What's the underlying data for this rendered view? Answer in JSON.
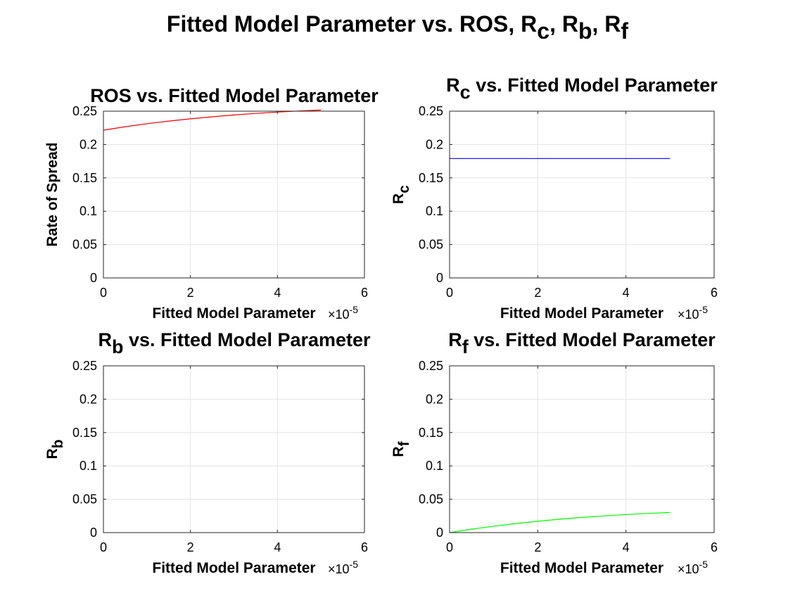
{
  "figure": {
    "title_main": "Fitted Model Parameter vs. ROS, R",
    "title_parts": [
      {
        "t": "Fitted Model Parameter vs. ROS, R",
        "sub": false
      },
      {
        "t": "c",
        "sub": true
      },
      {
        "t": ", R",
        "sub": false
      },
      {
        "t": "b",
        "sub": true
      },
      {
        "t": ", R",
        "sub": false
      },
      {
        "t": "f",
        "sub": true
      }
    ]
  },
  "chart_data": [
    {
      "type": "line",
      "title_parts": [
        {
          "t": "ROS vs. Fitted Model Parameter",
          "sub": false
        }
      ],
      "xlabel": "Fitted Model Parameter",
      "x_exponent": "×10",
      "x_exponent_power": "-5",
      "ylabel_parts": [
        {
          "t": "Rate of Spread",
          "sub": false
        }
      ],
      "xlim": [
        0,
        6
      ],
      "ylim": [
        0,
        0.25
      ],
      "xticks": [
        "0",
        "2",
        "4",
        "6"
      ],
      "yticks": [
        "0",
        "0.05",
        "0.1",
        "0.15",
        "0.2",
        "0.25"
      ],
      "grid": true,
      "series": [
        {
          "color": "#ff0000",
          "x": [
            0,
            0.5,
            1,
            1.5,
            2,
            2.5,
            3,
            3.5,
            4,
            4.5,
            5
          ],
          "y": [
            0.2215,
            0.2267,
            0.2312,
            0.2351,
            0.2385,
            0.2416,
            0.2443,
            0.2466,
            0.2486,
            0.2503,
            0.2517
          ]
        }
      ]
    },
    {
      "type": "line",
      "title_parts": [
        {
          "t": "R",
          "sub": false
        },
        {
          "t": "c",
          "sub": true
        },
        {
          "t": " vs. Fitted Model Parameter",
          "sub": false
        }
      ],
      "xlabel": "Fitted Model Parameter",
      "x_exponent": "×10",
      "x_exponent_power": "-5",
      "ylabel_parts": [
        {
          "t": "R",
          "sub": false
        },
        {
          "t": "c",
          "sub": true
        }
      ],
      "xlim": [
        0,
        6
      ],
      "ylim": [
        0,
        0.25
      ],
      "xticks": [
        "0",
        "2",
        "4",
        "6"
      ],
      "yticks": [
        "0",
        "0.05",
        "0.1",
        "0.15",
        "0.2",
        "0.25"
      ],
      "grid": true,
      "series": [
        {
          "color": "#0000ff",
          "x": [
            0,
            5
          ],
          "y": [
            0.179,
            0.179
          ]
        }
      ]
    },
    {
      "type": "line",
      "title_parts": [
        {
          "t": "R",
          "sub": false
        },
        {
          "t": "b",
          "sub": true
        },
        {
          "t": " vs. Fitted Model Parameter",
          "sub": false
        }
      ],
      "xlabel": "Fitted Model Parameter",
      "x_exponent": "×10",
      "x_exponent_power": "-5",
      "ylabel_parts": [
        {
          "t": "R",
          "sub": false
        },
        {
          "t": "b",
          "sub": true
        }
      ],
      "xlim": [
        0,
        6
      ],
      "ylim": [
        0,
        0.25
      ],
      "xticks": [
        "0",
        "2",
        "4",
        "6"
      ],
      "yticks": [
        "0",
        "0.05",
        "0.1",
        "0.15",
        "0.2",
        "0.25"
      ],
      "grid": true,
      "series": []
    },
    {
      "type": "line",
      "title_parts": [
        {
          "t": "R",
          "sub": false
        },
        {
          "t": "f",
          "sub": true
        },
        {
          "t": " vs. Fitted Model Parameter",
          "sub": false
        }
      ],
      "xlabel": "Fitted Model Parameter",
      "x_exponent": "×10",
      "x_exponent_power": "-5",
      "ylabel_parts": [
        {
          "t": "R",
          "sub": false
        },
        {
          "t": "f",
          "sub": true
        }
      ],
      "xlim": [
        0,
        6
      ],
      "ylim": [
        0,
        0.25
      ],
      "xticks": [
        "0",
        "2",
        "4",
        "6"
      ],
      "yticks": [
        "0",
        "0.05",
        "0.1",
        "0.15",
        "0.2",
        "0.25"
      ],
      "grid": true,
      "series": [
        {
          "color": "#00ff00",
          "x": [
            0,
            0.5,
            1,
            1.5,
            2,
            2.5,
            3,
            3.5,
            4,
            4.5,
            5
          ],
          "y": [
            0,
            0.0052,
            0.0097,
            0.0136,
            0.017,
            0.0201,
            0.0228,
            0.0251,
            0.0271,
            0.0288,
            0.0302
          ]
        }
      ]
    }
  ]
}
